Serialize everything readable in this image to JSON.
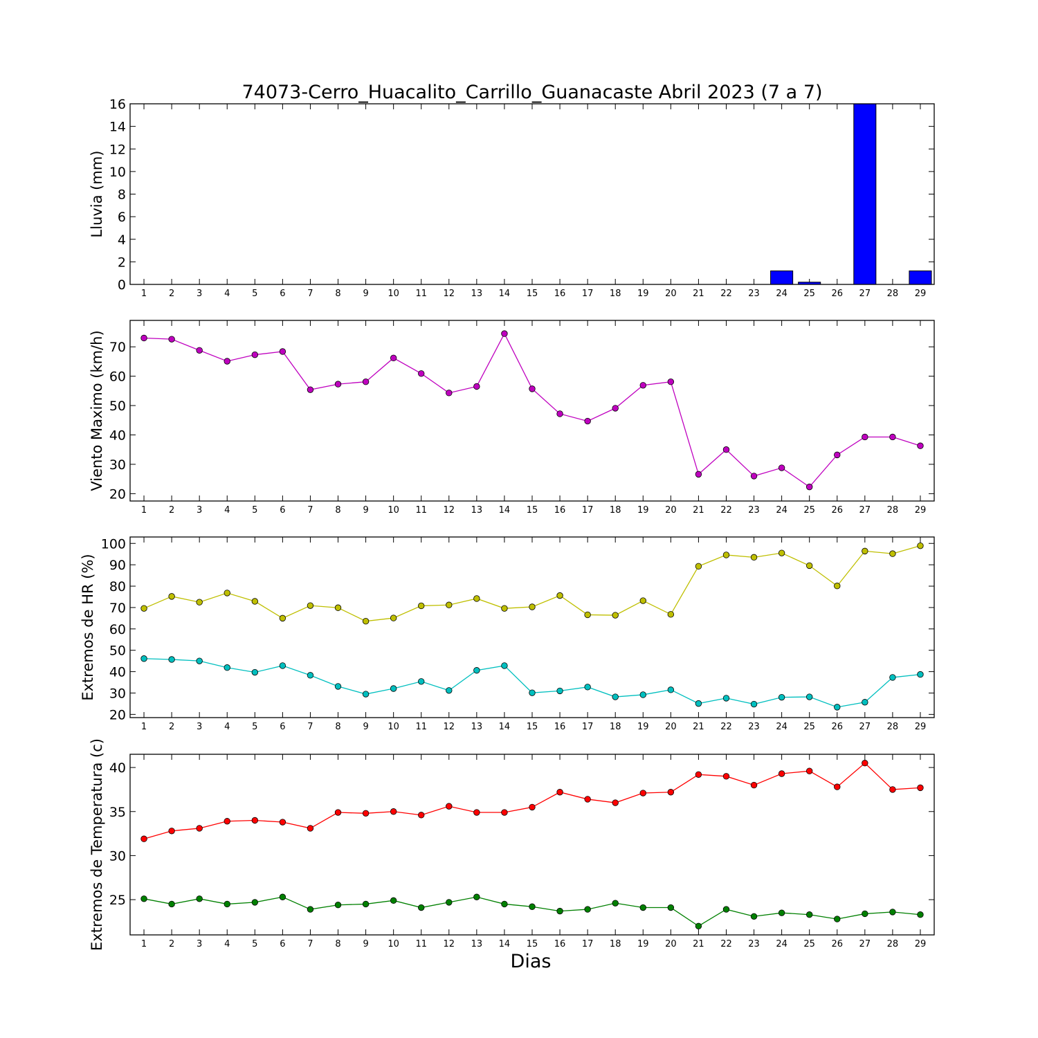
{
  "chart_data": [
    {
      "type": "bar",
      "title": "74073-Cerro_Huacalito_Carrillo_Guanacaste Abril 2023  (7 a 7)",
      "ylabel": "Lluvia (mm)",
      "xlabel": "",
      "categories": [
        1,
        2,
        3,
        4,
        5,
        6,
        7,
        8,
        9,
        10,
        11,
        12,
        13,
        14,
        15,
        16,
        17,
        18,
        19,
        20,
        21,
        22,
        23,
        24,
        25,
        26,
        27,
        28,
        29
      ],
      "values": [
        0,
        0,
        0,
        0,
        0,
        0,
        0,
        0,
        0,
        0,
        0,
        0,
        0,
        0,
        0,
        0,
        0,
        0,
        0,
        0,
        0,
        0,
        0,
        1.2,
        0.2,
        0,
        16,
        0,
        1.2
      ],
      "ylim": [
        0,
        16
      ],
      "yticks": [
        0,
        2,
        4,
        6,
        8,
        10,
        12,
        14,
        16
      ],
      "color": "#0000ff",
      "grid": false
    },
    {
      "type": "line",
      "ylabel": "Viento Maximo (km/h)",
      "xlabel": "",
      "x": [
        1,
        2,
        3,
        4,
        5,
        6,
        7,
        8,
        9,
        10,
        11,
        12,
        13,
        14,
        15,
        16,
        17,
        18,
        19,
        20,
        21,
        22,
        23,
        24,
        25,
        26,
        27,
        28,
        29
      ],
      "series": [
        {
          "color": "#bf00bf",
          "values": [
            73,
            72.6,
            68.8,
            65.1,
            67.3,
            68.4,
            55.4,
            57.3,
            58.1,
            66.2,
            60.9,
            54.3,
            56.5,
            74.5,
            55.7,
            47.2,
            44.7,
            49.1,
            56.9,
            58.1,
            26.6,
            35,
            26,
            28.8,
            22.3,
            33.2,
            39.3,
            39.3,
            36.3
          ]
        }
      ],
      "ylim": [
        17.5,
        79
      ],
      "yticks": [
        20,
        30,
        40,
        50,
        60,
        70
      ],
      "grid": false
    },
    {
      "type": "line",
      "ylabel": "Extremos de HR (%)",
      "xlabel": "",
      "x": [
        1,
        2,
        3,
        4,
        5,
        6,
        7,
        8,
        9,
        10,
        11,
        12,
        13,
        14,
        15,
        16,
        17,
        18,
        19,
        20,
        21,
        22,
        23,
        24,
        25,
        26,
        27,
        28,
        29
      ],
      "series": [
        {
          "color": "#bfbf00",
          "values": [
            69.6,
            75.2,
            72.5,
            76.8,
            72.9,
            65,
            70.9,
            69.9,
            63.6,
            65.1,
            70.8,
            71.2,
            74.2,
            69.6,
            70.3,
            75.6,
            66.6,
            66.4,
            73.2,
            66.8,
            89.3,
            94.6,
            93.5,
            95.5,
            89.6,
            80.1,
            96.4,
            95.2,
            98.9
          ]
        },
        {
          "color": "#00bfbf",
          "values": [
            46.1,
            45.7,
            45,
            41.9,
            39.7,
            42.8,
            38.3,
            33.1,
            29.5,
            32.1,
            35.4,
            31.2,
            40.6,
            42.8,
            30.1,
            31,
            32.8,
            28.2,
            29.2,
            31.5,
            25.1,
            27.6,
            24.8,
            28,
            28.2,
            23.4,
            25.7,
            37.3,
            38.7
          ]
        }
      ],
      "ylim": [
        18.5,
        103
      ],
      "yticks": [
        20,
        30,
        40,
        50,
        60,
        70,
        80,
        90,
        100
      ],
      "grid": false
    },
    {
      "type": "line",
      "ylabel": "Extremos de Temperatura (c)",
      "xlabel": "Dias",
      "x": [
        1,
        2,
        3,
        4,
        5,
        6,
        7,
        8,
        9,
        10,
        11,
        12,
        13,
        14,
        15,
        16,
        17,
        18,
        19,
        20,
        21,
        22,
        23,
        24,
        25,
        26,
        27,
        28,
        29
      ],
      "series": [
        {
          "color": "#ff0000",
          "values": [
            31.9,
            32.8,
            33.1,
            33.9,
            34,
            33.8,
            33.1,
            34.9,
            34.8,
            35,
            34.6,
            35.6,
            34.9,
            34.9,
            35.5,
            37.2,
            36.4,
            36,
            37.1,
            37.2,
            39.2,
            39,
            38,
            39.3,
            39.6,
            37.8,
            40.5,
            37.5,
            37.7
          ]
        },
        {
          "color": "#008000",
          "values": [
            25.1,
            24.5,
            25.1,
            24.5,
            24.7,
            25.3,
            23.9,
            24.4,
            24.5,
            24.9,
            24.1,
            24.7,
            25.3,
            24.5,
            24.2,
            23.7,
            23.9,
            24.6,
            24.1,
            24.1,
            22,
            23.9,
            23.1,
            23.5,
            23.3,
            22.8,
            23.4,
            23.6,
            23.3
          ]
        }
      ],
      "ylim": [
        21,
        41.5
      ],
      "yticks": [
        25,
        30,
        35,
        40
      ],
      "grid": false
    }
  ]
}
